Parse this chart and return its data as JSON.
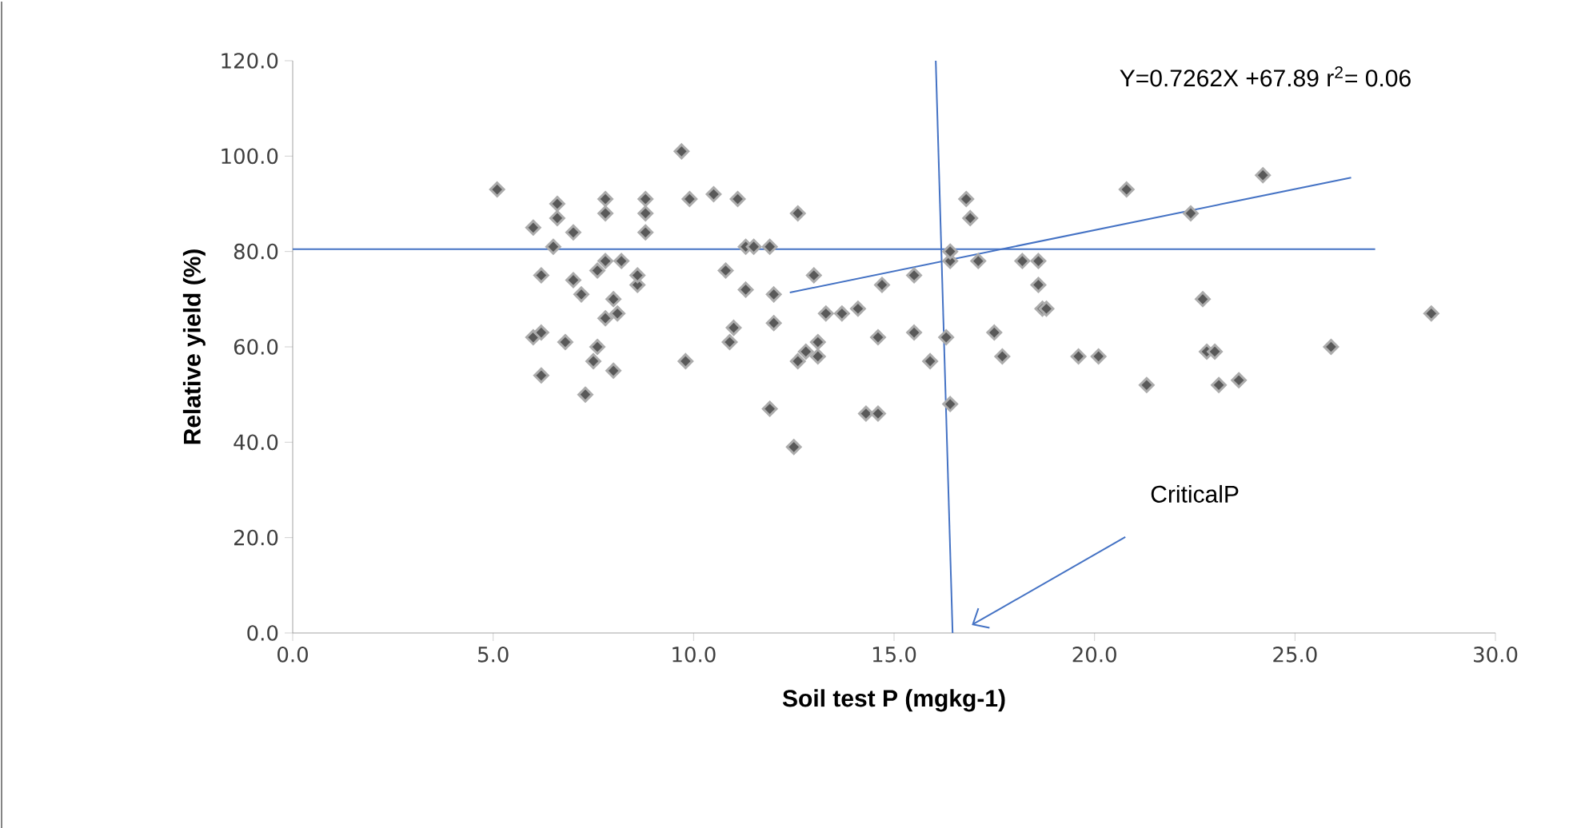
{
  "chart_data": {
    "type": "scatter",
    "xlabel": "Soil test P (mgkg-1)",
    "ylabel": "Relative yield (%)",
    "xlim": [
      0,
      30
    ],
    "ylim": [
      0,
      120
    ],
    "xticks": [
      {
        "value": 0,
        "label": "0.0"
      },
      {
        "value": 5,
        "label": "5.0"
      },
      {
        "value": 10,
        "label": "10.0"
      },
      {
        "value": 15,
        "label": "15.0"
      },
      {
        "value": 20,
        "label": "20.0"
      },
      {
        "value": 25,
        "label": "25.0"
      },
      {
        "value": 30,
        "label": "30.0"
      }
    ],
    "yticks": [
      {
        "value": 0,
        "label": "0.0"
      },
      {
        "value": 20,
        "label": "20.0"
      },
      {
        "value": 40,
        "label": "40.0"
      },
      {
        "value": 60,
        "label": "60.0"
      },
      {
        "value": 80,
        "label": "80.0"
      },
      {
        "value": 100,
        "label": "100.0"
      },
      {
        "value": 120,
        "label": "120.0"
      }
    ],
    "marker": "diamond",
    "grid": false,
    "series": [
      {
        "type": "scatter",
        "color": "#595959",
        "x": [
          5.1,
          6.0,
          6.5,
          6.6,
          6.6,
          6.2,
          6.0,
          6.2,
          6.2,
          6.8,
          7.0,
          7.0,
          7.2,
          7.3,
          7.5,
          7.6,
          7.6,
          7.8,
          7.8,
          7.8,
          7.8,
          8.0,
          8.0,
          8.1,
          8.2,
          8.6,
          8.6,
          8.8,
          8.8,
          8.8,
          9.7,
          9.8,
          9.9,
          10.5,
          10.8,
          10.9,
          11.0,
          11.1,
          11.3,
          11.3,
          11.5,
          11.9,
          11.9,
          12.0,
          12.0,
          12.5,
          12.6,
          12.6,
          12.8,
          13.0,
          13.1,
          13.1,
          13.3,
          13.7,
          14.1,
          14.3,
          14.6,
          14.6,
          14.7,
          15.5,
          15.5,
          15.9,
          16.3,
          16.4,
          16.4,
          16.4,
          16.8,
          16.9,
          17.1,
          17.5,
          17.7,
          18.2,
          18.6,
          18.6,
          18.7,
          18.8,
          19.6,
          20.1,
          20.8,
          21.3,
          22.4,
          22.7,
          22.8,
          23.0,
          23.1,
          23.6,
          24.2,
          25.9,
          28.4
        ],
        "values": [
          93,
          85,
          81,
          87,
          90,
          75,
          62,
          63,
          54,
          61,
          74,
          84,
          71,
          50,
          57,
          60,
          76,
          66,
          78,
          88,
          91,
          70,
          55,
          67,
          78,
          73,
          75,
          84,
          88,
          91,
          101,
          57,
          91,
          92,
          76,
          61,
          64,
          91,
          81,
          72,
          81,
          81,
          47,
          71,
          65,
          39,
          88,
          57,
          59,
          75,
          61,
          58,
          67,
          67,
          68,
          46,
          46,
          62,
          73,
          63,
          75,
          57,
          62,
          48,
          78,
          80,
          91,
          87,
          78,
          63,
          58,
          78,
          78,
          73,
          68,
          68,
          58,
          58,
          93,
          52,
          88,
          70,
          59,
          59,
          52,
          53,
          96,
          60,
          67
        ]
      },
      {
        "type": "line",
        "color": "#4472c4",
        "marker": "none",
        "x": [
          12.4,
          26.4
        ],
        "values": [
          71.4,
          95.5
        ]
      },
      {
        "type": "line",
        "color": "#4472c4",
        "marker": "none",
        "x": [
          0,
          27.0
        ],
        "values": [
          80.5,
          80.5
        ]
      },
      {
        "type": "line",
        "color": "#4472c4",
        "marker": "none",
        "x": [
          16.04,
          16.46
        ],
        "values": [
          120,
          0
        ]
      }
    ],
    "annotations": [
      "Y=0.7262X +67.89 r$^{2}$= 0.06",
      "CriticalP"
    ]
  }
}
